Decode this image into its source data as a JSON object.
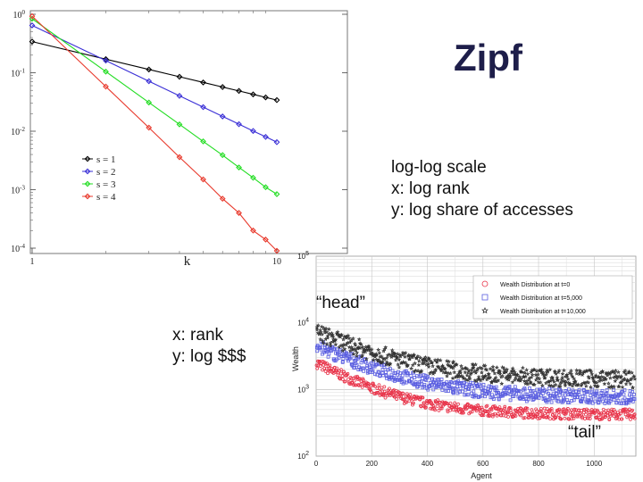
{
  "slide": {
    "title": "Zipf",
    "notes_loglog": [
      "log-log scale",
      "x: log rank",
      "y: log share of accesses"
    ],
    "notes_wealth": [
      "x: rank",
      "y: log $$$"
    ],
    "callout_head": "“head”",
    "callout_tail": "“tail”"
  },
  "chart_data": [
    {
      "type": "line",
      "xscale": "log",
      "yscale": "log",
      "xlabel": "k",
      "ylabel": "",
      "xlim": [
        1,
        10
      ],
      "ylim": [
        0.0001,
        1
      ],
      "x_tick_labels": [
        "1",
        "10"
      ],
      "y_tick_labels": [
        "10^0",
        "10^-1",
        "10^-2",
        "10^-3",
        "10^-4"
      ],
      "legend_placement": "lower-left",
      "x": [
        1,
        2,
        3,
        4,
        5,
        6,
        7,
        8,
        9,
        10
      ],
      "series": [
        {
          "name": "s = 1",
          "color": "#000000",
          "values": [
            0.3414,
            0.1707,
            0.1138,
            0.0854,
            0.0683,
            0.0569,
            0.0488,
            0.0427,
            0.0379,
            0.0341
          ]
        },
        {
          "name": "s = 2",
          "color": "#3a2fd6",
          "values": [
            0.6452,
            0.1613,
            0.0717,
            0.0403,
            0.0258,
            0.0179,
            0.0132,
            0.0101,
            0.008,
            0.0065
          ]
        },
        {
          "name": "s = 3",
          "color": "#22dd22",
          "values": [
            0.8375,
            0.1047,
            0.031,
            0.0131,
            0.0067,
            0.0039,
            0.0024,
            0.0016,
            0.0011,
            0.00084
          ]
        },
        {
          "name": "s = 4",
          "color": "#e8382b",
          "values": [
            0.9278,
            0.058,
            0.0115,
            0.0036,
            0.0015,
            0.0007,
            0.0004,
            0.0002,
            0.00014,
            9e-05
          ]
        }
      ]
    },
    {
      "type": "scatter",
      "xscale": "linear",
      "yscale": "log",
      "xlabel": "Agent",
      "ylabel": "Wealth",
      "xlim": [
        0,
        1150
      ],
      "ylim": [
        100,
        100000
      ],
      "x_tick_labels": [
        "0",
        "200",
        "400",
        "600",
        "800",
        "1000"
      ],
      "y_tick_labels": [
        "10^2",
        "10^3",
        "10^4",
        "10^5"
      ],
      "grid": true,
      "legend_placement": "top-right",
      "series": [
        {
          "name": "Wealth Distribution at t=0",
          "marker": "circle",
          "color": "#e8344a",
          "head": 2500,
          "tail": 420,
          "decay": 170
        },
        {
          "name": "Wealth Distribution at t=5,000",
          "marker": "square",
          "color": "#5a5ee0",
          "head": 4500,
          "tail": 760,
          "decay": 200
        },
        {
          "name": "Wealth Distribution at t=10,000",
          "marker": "star",
          "color": "#333333",
          "head": 7200,
          "tail": 1400,
          "decay": 210
        }
      ]
    }
  ]
}
